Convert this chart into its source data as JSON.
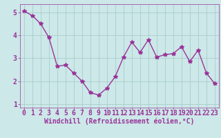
{
  "x": [
    0,
    1,
    2,
    3,
    4,
    5,
    6,
    7,
    8,
    9,
    10,
    11,
    12,
    13,
    14,
    15,
    16,
    17,
    18,
    19,
    20,
    21,
    22,
    23
  ],
  "y": [
    5.05,
    4.85,
    4.5,
    3.9,
    2.65,
    2.7,
    2.35,
    2.0,
    1.5,
    1.4,
    1.7,
    2.2,
    3.05,
    3.7,
    3.25,
    3.8,
    3.05,
    3.15,
    3.2,
    3.5,
    2.85,
    3.35,
    2.35,
    1.9
  ],
  "line_color": "#993399",
  "marker": "*",
  "marker_size": 4,
  "bg_color": "#cce8e8",
  "grid_color": "#aacccc",
  "xlabel": "Windchill (Refroidissement éolien,°C)",
  "xlim": [
    -0.5,
    23.5
  ],
  "ylim": [
    0.85,
    5.35
  ],
  "yticks": [
    1,
    2,
    3,
    4,
    5
  ],
  "xticks": [
    0,
    1,
    2,
    3,
    4,
    5,
    6,
    7,
    8,
    9,
    10,
    11,
    12,
    13,
    14,
    15,
    16,
    17,
    18,
    19,
    20,
    21,
    22,
    23
  ],
  "tick_color": "#993399",
  "label_color": "#993399",
  "font_size_xlabel": 7,
  "font_size_ticks": 7,
  "line_width": 1.0
}
